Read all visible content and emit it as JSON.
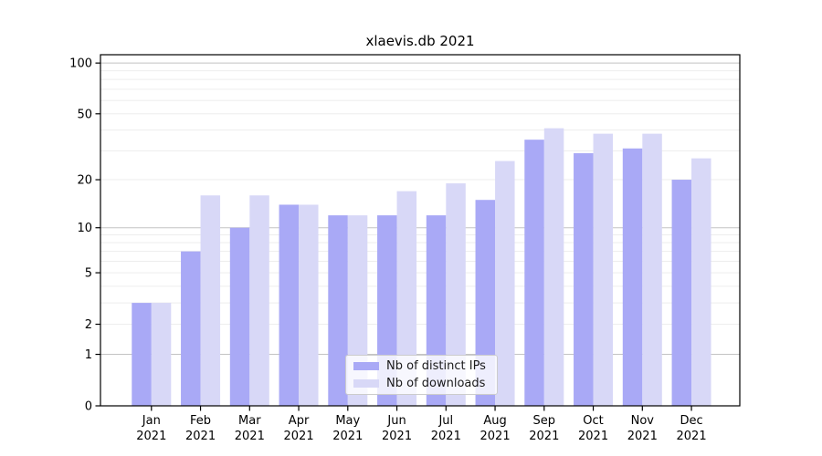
{
  "figure": {
    "title": "xlaevis.db 2021"
  },
  "legend": {
    "position": "lower center inside plot",
    "items": [
      {
        "label": "Nb of distinct IPs",
        "color": "#a9a9f6"
      },
      {
        "label": "Nb of downloads",
        "color": "#d8d8f7"
      }
    ]
  },
  "chart_data": {
    "type": "bar",
    "title": "xlaevis.db 2021",
    "categories": [
      [
        "Jan",
        "2021"
      ],
      [
        "Feb",
        "2021"
      ],
      [
        "Mar",
        "2021"
      ],
      [
        "Apr",
        "2021"
      ],
      [
        "May",
        "2021"
      ],
      [
        "Jun",
        "2021"
      ],
      [
        "Jul",
        "2021"
      ],
      [
        "Aug",
        "2021"
      ],
      [
        "Sep",
        "2021"
      ],
      [
        "Oct",
        "2021"
      ],
      [
        "Nov",
        "2021"
      ],
      [
        "Dec",
        "2021"
      ]
    ],
    "series": [
      {
        "name": "Nb of distinct IPs",
        "color": "#a9a9f6",
        "values": [
          3,
          7,
          10,
          14,
          12,
          12,
          12,
          15,
          35,
          29,
          31,
          20
        ]
      },
      {
        "name": "Nb of downloads",
        "color": "#d8d8f7",
        "values": [
          3,
          16,
          16,
          14,
          12,
          17,
          19,
          26,
          41,
          38,
          38,
          27
        ]
      }
    ],
    "xlabel": "",
    "ylabel": "",
    "yscale": "symlog (position ~ log(1+value))",
    "ylim": [
      0,
      112
    ],
    "yticks": [
      0,
      1,
      2,
      5,
      10,
      20,
      50,
      100
    ],
    "minor_gridlines": [
      2,
      3,
      4,
      5,
      6,
      7,
      8,
      9,
      20,
      30,
      40,
      50,
      60,
      70,
      80,
      90
    ],
    "major_gridlines": [
      1,
      10,
      100
    ],
    "grid": "horizontal",
    "colors": {
      "major_grid": "#c3c3c3",
      "minor_grid": "#ededed",
      "spine": "#000000",
      "tick_label": "#000000"
    }
  }
}
